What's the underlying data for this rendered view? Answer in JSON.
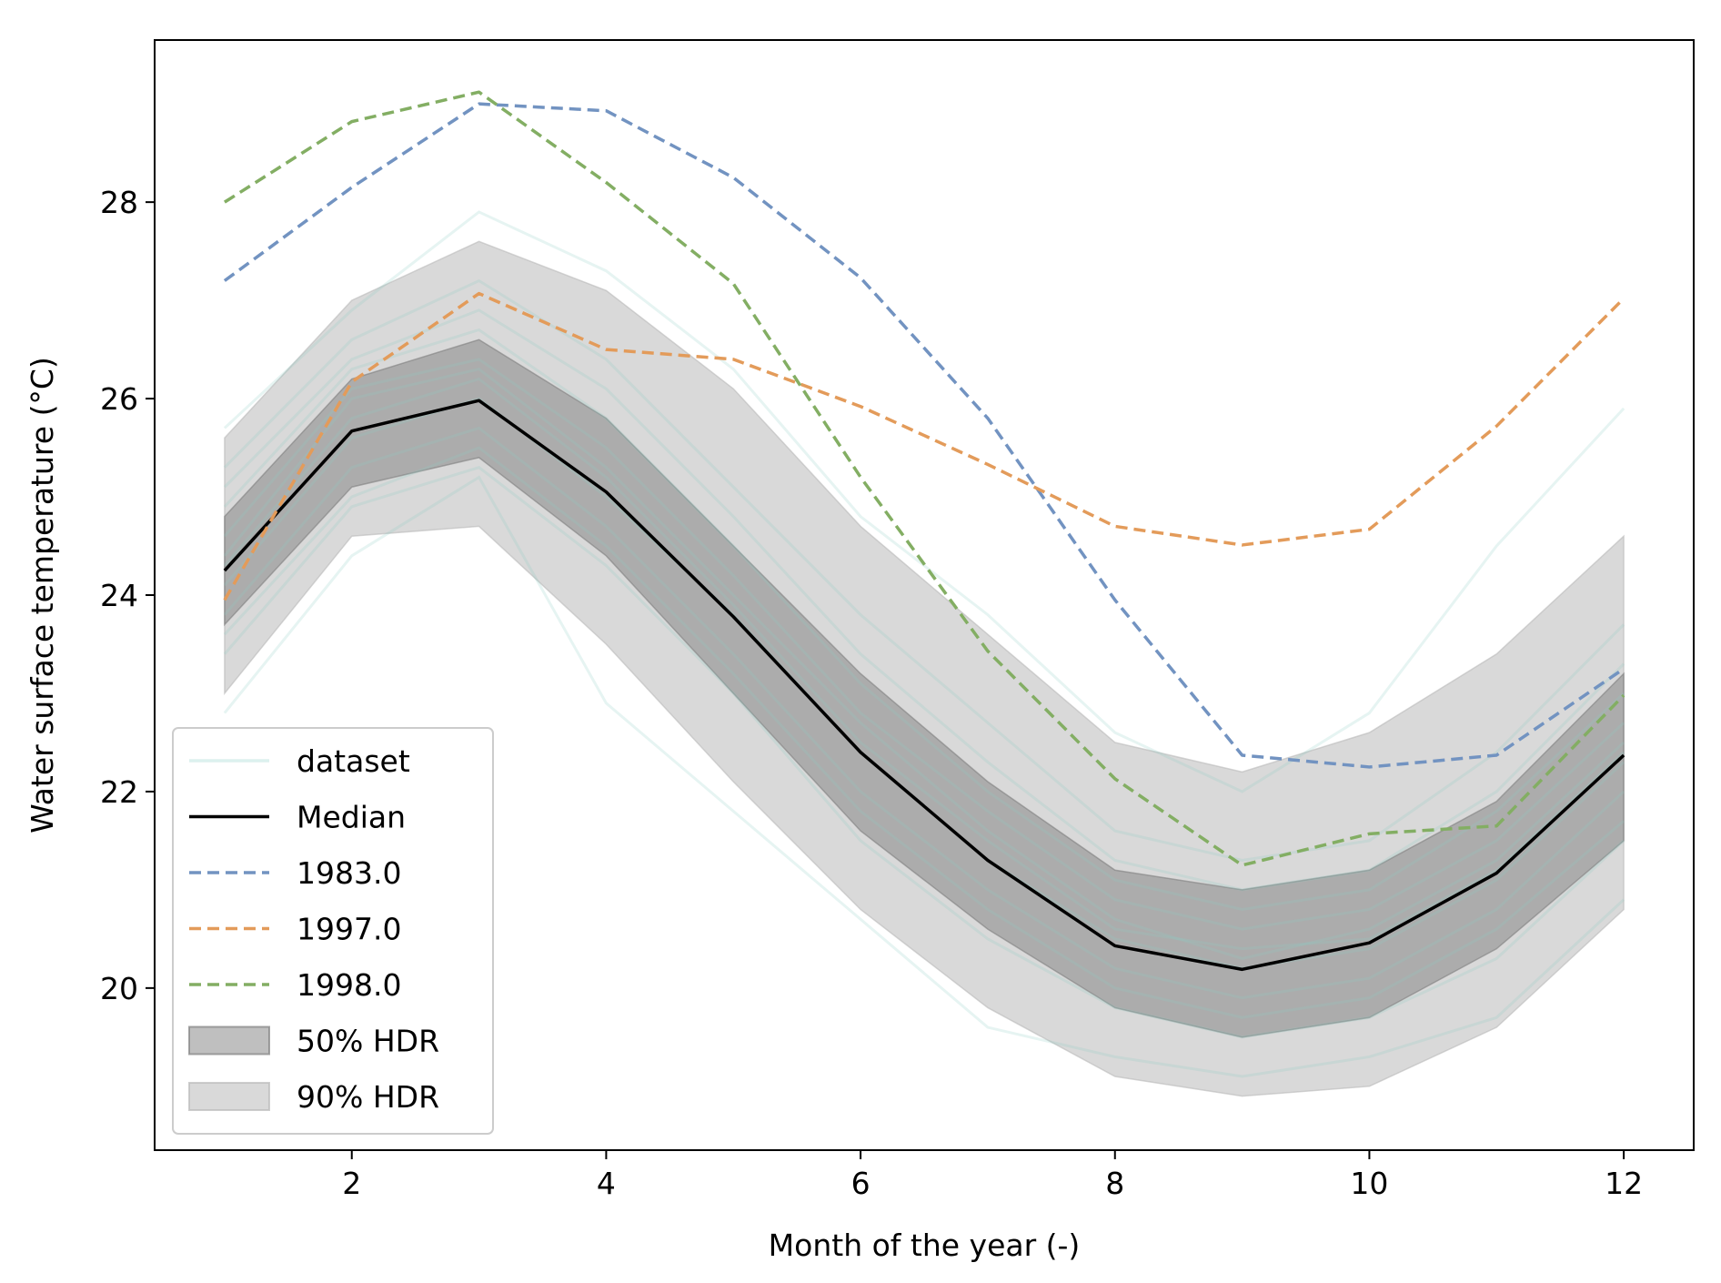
{
  "chart_data": {
    "type": "line",
    "xlabel": "Month of the year (-)",
    "ylabel": "Water surface temperature (°C)",
    "xlim": [
      0.45,
      12.55
    ],
    "ylim": [
      18.35,
      29.65
    ],
    "xticks": [
      2,
      4,
      6,
      8,
      10,
      12
    ],
    "yticks": [
      20,
      22,
      24,
      26,
      28
    ],
    "grid": false,
    "legend_position": "lower-left",
    "x": [
      1,
      2,
      3,
      4,
      5,
      6,
      7,
      8,
      9,
      10,
      11,
      12
    ],
    "bands": [
      {
        "name": "90% HDR",
        "color": "#b9b9b9",
        "opacity": 0.55,
        "lower": [
          23.0,
          24.6,
          24.7,
          23.5,
          22.1,
          20.8,
          19.8,
          19.1,
          18.9,
          19.0,
          19.6,
          20.8
        ],
        "upper": [
          25.6,
          27.0,
          27.6,
          27.1,
          26.1,
          24.7,
          23.6,
          22.5,
          22.2,
          22.6,
          23.4,
          24.6
        ]
      },
      {
        "name": "50% HDR",
        "color": "#7f7f7f",
        "opacity": 0.5,
        "lower": [
          23.7,
          25.1,
          25.4,
          24.4,
          23.0,
          21.6,
          20.6,
          19.8,
          19.5,
          19.7,
          20.4,
          21.5
        ],
        "upper": [
          24.8,
          26.2,
          26.6,
          25.8,
          24.5,
          23.2,
          22.1,
          21.2,
          21.0,
          21.2,
          21.9,
          23.2
        ]
      }
    ],
    "dataset": [
      [
        24.1,
        25.6,
        26.0,
        25.0,
        23.8,
        22.4,
        21.3,
        20.5,
        20.2,
        20.4,
        21.1,
        22.3
      ],
      [
        24.6,
        26.1,
        26.4,
        25.5,
        24.2,
        22.8,
        21.8,
        20.9,
        20.6,
        20.8,
        21.5,
        22.7
      ],
      [
        23.8,
        25.3,
        25.7,
        24.7,
        23.4,
        22.0,
        21.0,
        20.2,
        19.9,
        20.1,
        20.8,
        22.0
      ],
      [
        25.1,
        26.4,
        26.9,
        26.1,
        24.8,
        23.4,
        22.3,
        21.3,
        21.0,
        21.2,
        22.0,
        23.3
      ],
      [
        23.4,
        24.9,
        25.3,
        24.3,
        23.0,
        21.5,
        20.5,
        19.8,
        19.5,
        19.7,
        20.3,
        21.5
      ],
      [
        24.4,
        26.0,
        26.3,
        25.3,
        24.0,
        22.7,
        21.6,
        20.7,
        20.3,
        20.6,
        21.3,
        22.5
      ],
      [
        25.7,
        26.9,
        27.9,
        27.3,
        26.3,
        24.8,
        23.8,
        22.6,
        22.0,
        22.8,
        24.5,
        25.9
      ],
      [
        22.8,
        24.4,
        25.2,
        22.9,
        21.8,
        20.7,
        19.6,
        19.3,
        19.1,
        19.3,
        19.7,
        20.9
      ],
      [
        24.9,
        26.3,
        26.7,
        25.8,
        24.5,
        23.1,
        22.0,
        21.1,
        20.8,
        21.0,
        21.8,
        23.0
      ],
      [
        23.6,
        25.0,
        25.5,
        24.5,
        23.2,
        21.8,
        20.8,
        20.0,
        19.7,
        19.9,
        20.6,
        21.7
      ],
      [
        24.3,
        25.8,
        26.2,
        25.2,
        23.9,
        22.5,
        21.5,
        20.6,
        20.4,
        20.5,
        21.2,
        22.4
      ],
      [
        25.3,
        26.6,
        27.2,
        26.4,
        25.1,
        23.8,
        22.7,
        21.6,
        21.3,
        21.5,
        22.4,
        23.7
      ]
    ],
    "series": [
      {
        "name": "Median",
        "color": "#000000",
        "dashed": false,
        "values": [
          24.25,
          25.67,
          25.98,
          25.05,
          23.78,
          22.4,
          21.3,
          20.43,
          20.19,
          20.46,
          21.17,
          22.37
        ]
      },
      {
        "name": "1983.0",
        "color": "#7293c1",
        "dashed": true,
        "values": [
          27.2,
          28.15,
          29.0,
          28.93,
          28.25,
          27.23,
          25.8,
          23.95,
          22.37,
          22.25,
          22.37,
          23.25
        ]
      },
      {
        "name": "1997.0",
        "color": "#e39b5a",
        "dashed": true,
        "values": [
          23.95,
          26.17,
          27.07,
          26.5,
          26.4,
          25.92,
          25.33,
          24.7,
          24.51,
          24.67,
          25.72,
          27.02
        ]
      },
      {
        "name": "1998.0",
        "color": "#83ae63",
        "dashed": true,
        "values": [
          28.0,
          28.82,
          29.12,
          28.2,
          27.17,
          25.2,
          23.43,
          22.13,
          21.25,
          21.57,
          21.65,
          22.98
        ]
      }
    ],
    "legend": {
      "entries": [
        "dataset",
        "Median",
        "1983.0",
        "1997.0",
        "1998.0",
        "50% HDR",
        "90% HDR"
      ]
    },
    "colors": {
      "dataset": "#8ccfc6"
    }
  }
}
